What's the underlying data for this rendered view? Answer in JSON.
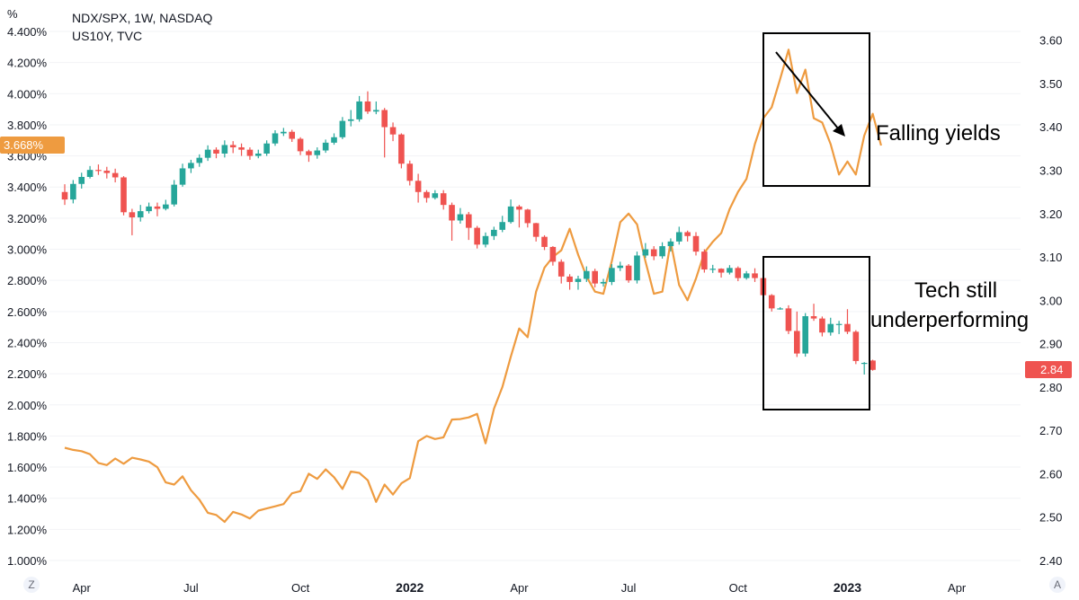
{
  "legend": {
    "ratio_series": "NDX/SPX, 1W, NASDAQ",
    "yield_series": "US10Y, TVC"
  },
  "left_axis": {
    "unit": "%",
    "current_value": "3.668%",
    "current_color": "#ee9b40"
  },
  "right_axis": {
    "current_value": "2.84",
    "current_color": "#ef5350"
  },
  "buttons": {
    "left": "Z",
    "right": "A"
  },
  "annotations": {
    "yields": "Falling yields",
    "tech_line1": "Tech still",
    "tech_line2": "underperforming"
  },
  "chart_data": {
    "type": "candlestick+line",
    "x_ticks": [
      "Apr",
      "Jul",
      "Oct",
      "2022",
      "Apr",
      "Jul",
      "Oct",
      "2023",
      "Apr"
    ],
    "x_tick_emphasis": [
      "2022",
      "2023"
    ],
    "x_tick_weeks": [
      2,
      15,
      28,
      41,
      54,
      67,
      80,
      93,
      106
    ],
    "left_axis": {
      "ticks": [
        "1.000%",
        "1.200%",
        "1.400%",
        "1.600%",
        "1.800%",
        "2.000%",
        "2.200%",
        "2.400%",
        "2.600%",
        "2.800%",
        "3.000%",
        "3.200%",
        "3.400%",
        "3.600%",
        "3.800%",
        "4.000%",
        "4.200%",
        "4.400%"
      ],
      "range": [
        1.0,
        4.4
      ]
    },
    "right_axis": {
      "ticks": [
        "2.40",
        "2.50",
        "2.60",
        "2.70",
        "2.80",
        "2.90",
        "3.00",
        "3.10",
        "3.20",
        "3.30",
        "3.40",
        "3.50",
        "3.60"
      ],
      "range": [
        2.4,
        3.62
      ]
    },
    "colors": {
      "up": "#26a69a",
      "down": "#ef5350",
      "yield_line": "#ee9b40"
    },
    "ndx_spx_candles": [
      [
        3.368,
        3.32,
        3.418,
        3.285
      ],
      [
        3.32,
        3.42,
        3.445,
        3.295
      ],
      [
        3.42,
        3.465,
        3.492,
        3.39
      ],
      [
        3.465,
        3.51,
        3.535,
        3.455
      ],
      [
        3.51,
        3.505,
        3.545,
        3.478
      ],
      [
        3.505,
        3.49,
        3.53,
        3.455
      ],
      [
        3.49,
        3.462,
        3.518,
        3.43
      ],
      [
        3.462,
        3.238,
        3.47,
        3.218
      ],
      [
        3.238,
        3.205,
        3.26,
        3.09
      ],
      [
        3.205,
        3.245,
        3.285,
        3.178
      ],
      [
        3.245,
        3.275,
        3.3,
        3.23
      ],
      [
        3.275,
        3.26,
        3.3,
        3.212
      ],
      [
        3.26,
        3.288,
        3.318,
        3.25
      ],
      [
        3.288,
        3.415,
        3.445,
        3.275
      ],
      [
        3.415,
        3.52,
        3.55,
        3.402
      ],
      [
        3.52,
        3.555,
        3.575,
        3.49
      ],
      [
        3.555,
        3.588,
        3.61,
        3.53
      ],
      [
        3.588,
        3.64,
        3.668,
        3.568
      ],
      [
        3.64,
        3.615,
        3.655,
        3.585
      ],
      [
        3.615,
        3.67,
        3.7,
        3.59
      ],
      [
        3.67,
        3.655,
        3.695,
        3.618
      ],
      [
        3.655,
        3.64,
        3.68,
        3.6
      ],
      [
        3.64,
        3.6,
        3.655,
        3.575
      ],
      [
        3.6,
        3.615,
        3.64,
        3.585
      ],
      [
        3.615,
        3.68,
        3.7,
        3.6
      ],
      [
        3.68,
        3.745,
        3.765,
        3.665
      ],
      [
        3.745,
        3.755,
        3.78,
        3.728
      ],
      [
        3.755,
        3.71,
        3.768,
        3.69
      ],
      [
        3.71,
        3.63,
        3.72,
        3.605
      ],
      [
        3.63,
        3.605,
        3.64,
        3.562
      ],
      [
        3.605,
        3.635,
        3.655,
        3.582
      ],
      [
        3.635,
        3.685,
        3.705,
        3.62
      ],
      [
        3.685,
        3.72,
        3.745,
        3.672
      ],
      [
        3.72,
        3.825,
        3.85,
        3.708
      ],
      [
        3.825,
        3.835,
        3.895,
        3.79
      ],
      [
        3.835,
        3.95,
        3.985,
        3.82
      ],
      [
        3.95,
        3.885,
        4.015,
        3.87
      ],
      [
        3.885,
        3.895,
        3.95,
        3.868
      ],
      [
        3.895,
        3.785,
        3.908,
        3.59
      ],
      [
        3.785,
        3.738,
        3.815,
        3.695
      ],
      [
        3.738,
        3.55,
        3.745,
        3.52
      ],
      [
        3.55,
        3.44,
        3.57,
        3.41
      ],
      [
        3.44,
        3.368,
        3.485,
        3.3
      ],
      [
        3.368,
        3.33,
        3.38,
        3.3
      ],
      [
        3.33,
        3.36,
        3.38,
        3.32
      ],
      [
        3.36,
        3.285,
        3.38,
        3.255
      ],
      [
        3.285,
        3.185,
        3.3,
        3.055
      ],
      [
        3.185,
        3.225,
        3.265,
        3.165
      ],
      [
        3.225,
        3.138,
        3.24,
        3.06
      ],
      [
        3.138,
        3.03,
        3.15,
        3.005
      ],
      [
        3.03,
        3.085,
        3.108,
        3.012
      ],
      [
        3.085,
        3.125,
        3.145,
        3.06
      ],
      [
        3.125,
        3.175,
        3.215,
        3.11
      ],
      [
        3.175,
        3.275,
        3.32,
        3.165
      ],
      [
        3.275,
        3.255,
        3.285,
        3.14
      ],
      [
        3.255,
        3.168,
        3.26,
        3.14
      ],
      [
        3.168,
        3.08,
        3.17,
        3.05
      ],
      [
        3.08,
        3.015,
        3.09,
        2.995
      ],
      [
        3.015,
        2.92,
        3.02,
        2.895
      ],
      [
        2.92,
        2.825,
        2.935,
        2.78
      ],
      [
        2.825,
        2.79,
        2.84,
        2.74
      ],
      [
        2.79,
        2.81,
        2.83,
        2.74
      ],
      [
        2.81,
        2.86,
        2.89,
        2.79
      ],
      [
        2.86,
        2.78,
        2.875,
        2.755
      ],
      [
        2.78,
        2.79,
        2.81,
        2.76
      ],
      [
        2.79,
        2.88,
        2.905,
        2.77
      ],
      [
        2.88,
        2.895,
        2.92,
        2.86
      ],
      [
        2.895,
        2.8,
        2.905,
        2.785
      ],
      [
        2.8,
        2.96,
        2.985,
        2.78
      ],
      [
        2.96,
        3.0,
        3.04,
        2.945
      ],
      [
        3.0,
        2.955,
        3.02,
        2.93
      ],
      [
        2.955,
        3.02,
        3.045,
        2.94
      ],
      [
        3.02,
        3.05,
        3.07,
        2.985
      ],
      [
        3.05,
        3.11,
        3.145,
        3.03
      ],
      [
        3.11,
        3.085,
        3.12,
        3.05
      ],
      [
        3.085,
        2.985,
        3.11,
        2.96
      ],
      [
        2.985,
        2.87,
        3.0,
        2.85
      ],
      [
        2.87,
        2.875,
        2.9,
        2.848
      ],
      [
        2.875,
        2.85,
        2.878,
        2.818
      ],
      [
        2.85,
        2.88,
        2.898,
        2.838
      ],
      [
        2.88,
        2.815,
        2.89,
        2.795
      ],
      [
        2.815,
        2.845,
        2.86,
        2.805
      ],
      [
        2.845,
        2.815,
        2.878,
        2.79
      ],
      [
        2.815,
        2.705,
        2.822,
        2.695
      ],
      [
        2.705,
        2.62,
        2.712,
        2.6
      ],
      [
        2.62,
        2.62,
        2.628,
        2.612
      ],
      [
        2.62,
        2.475,
        2.64,
        2.455
      ],
      [
        2.475,
        2.33,
        2.6,
        2.308
      ],
      [
        2.33,
        2.57,
        2.59,
        2.31
      ],
      [
        2.57,
        2.555,
        2.65,
        2.54
      ],
      [
        2.555,
        2.465,
        2.568,
        2.44
      ],
      [
        2.465,
        2.52,
        2.56,
        2.445
      ],
      [
        2.52,
        2.52,
        2.54,
        2.455
      ],
      [
        2.52,
        2.47,
        2.615,
        2.455
      ],
      [
        2.47,
        2.282,
        2.48,
        2.262
      ],
      [
        2.265,
        2.27,
        2.275,
        2.195
      ],
      [
        2.285,
        2.225,
        2.29,
        2.22
      ]
    ],
    "us10y_line": [
      [
        0,
        2.66
      ],
      [
        1,
        2.655
      ],
      [
        2,
        2.652
      ],
      [
        3,
        2.645
      ],
      [
        4,
        2.625
      ],
      [
        5,
        2.62
      ],
      [
        6,
        2.635
      ],
      [
        7,
        2.623
      ],
      [
        8,
        2.637
      ],
      [
        9,
        2.633
      ],
      [
        10,
        2.628
      ],
      [
        11,
        2.615
      ],
      [
        12,
        2.58
      ],
      [
        13,
        2.575
      ],
      [
        14,
        2.594
      ],
      [
        15,
        2.562
      ],
      [
        16,
        2.54
      ],
      [
        17,
        2.51
      ],
      [
        18,
        2.505
      ],
      [
        19,
        2.489
      ],
      [
        20,
        2.512
      ],
      [
        21,
        2.506
      ],
      [
        22,
        2.497
      ],
      [
        23,
        2.515
      ],
      [
        24,
        2.52
      ],
      [
        25,
        2.525
      ],
      [
        26,
        2.53
      ],
      [
        27,
        2.555
      ],
      [
        28,
        2.56
      ],
      [
        29,
        2.6
      ],
      [
        30,
        2.588
      ],
      [
        31,
        2.61
      ],
      [
        32,
        2.592
      ],
      [
        33,
        2.565
      ],
      [
        34,
        2.605
      ],
      [
        35,
        2.602
      ],
      [
        36,
        2.585
      ],
      [
        37,
        2.535
      ],
      [
        38,
        2.575
      ],
      [
        39,
        2.552
      ],
      [
        40,
        2.578
      ],
      [
        41,
        2.59
      ],
      [
        42,
        2.675
      ],
      [
        43,
        2.687
      ],
      [
        44,
        2.68
      ],
      [
        45,
        2.684
      ],
      [
        46,
        2.725
      ],
      [
        47,
        2.726
      ],
      [
        48,
        2.73
      ],
      [
        49,
        2.738
      ],
      [
        50,
        2.67
      ],
      [
        51,
        2.75
      ],
      [
        52,
        2.8
      ],
      [
        53,
        2.87
      ],
      [
        54,
        2.935
      ],
      [
        55,
        2.915
      ],
      [
        56,
        3.02
      ],
      [
        57,
        3.075
      ],
      [
        58,
        3.1
      ],
      [
        59,
        3.115
      ],
      [
        60,
        3.165
      ],
      [
        61,
        3.105
      ],
      [
        62,
        3.055
      ],
      [
        63,
        3.02
      ],
      [
        64,
        3.015
      ],
      [
        65,
        3.09
      ],
      [
        66,
        3.18
      ],
      [
        67,
        3.2
      ],
      [
        68,
        3.175
      ],
      [
        69,
        3.09
      ],
      [
        70,
        3.015
      ],
      [
        71,
        3.02
      ],
      [
        72,
        3.135
      ],
      [
        73,
        3.035
      ],
      [
        74,
        3.0
      ],
      [
        75,
        3.05
      ],
      [
        76,
        3.11
      ],
      [
        77,
        3.135
      ],
      [
        78,
        3.155
      ],
      [
        79,
        3.21
      ],
      [
        80,
        3.25
      ],
      [
        81,
        3.28
      ],
      [
        82,
        3.36
      ],
      [
        83,
        3.42
      ],
      [
        84,
        3.445
      ],
      [
        85,
        3.51
      ],
      [
        86,
        3.578
      ],
      [
        87,
        3.478
      ],
      [
        88,
        3.532
      ],
      [
        89,
        3.42
      ],
      [
        90,
        3.41
      ],
      [
        91,
        3.36
      ],
      [
        92,
        3.29
      ],
      [
        93,
        3.32
      ],
      [
        94,
        3.29
      ],
      [
        95,
        3.38
      ],
      [
        96,
        3.43
      ],
      [
        97,
        3.357
      ]
    ]
  }
}
